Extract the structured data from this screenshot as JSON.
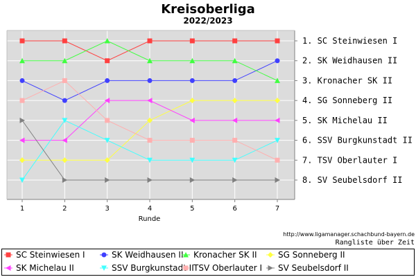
{
  "chart_data": {
    "type": "line",
    "title": "Kreisoberliga",
    "subtitle": "2022/2023",
    "xlabel": "Runde",
    "x": [
      1,
      2,
      3,
      4,
      5,
      6,
      7
    ],
    "ylim": [
      1,
      8
    ],
    "y_reversed": true,
    "grid": true,
    "rank_labels": [
      "1. SC Steinwiesen I",
      "2. SK Weidhausen II",
      "3. Kronacher SK II",
      "4. SG Sonneberg II",
      "5. SK Michelau II",
      "6. SSV Burgkunstadt II",
      "7. TSV Oberlauter I",
      "8. SV Seubelsdorf  II"
    ],
    "series": [
      {
        "name": "SC Steinwiesen I",
        "color": "#ff4040",
        "marker": "square",
        "values": [
          1,
          1,
          2,
          1,
          1,
          1,
          1
        ]
      },
      {
        "name": "SK Weidhausen II",
        "color": "#4040ff",
        "marker": "circle",
        "values": [
          3,
          4,
          3,
          3,
          3,
          3,
          2
        ]
      },
      {
        "name": "Kronacher SK II",
        "color": "#40ff40",
        "marker": "triangle-up",
        "values": [
          2,
          2,
          1,
          2,
          2,
          2,
          3
        ]
      },
      {
        "name": "SG Sonneberg II",
        "color": "#ffff40",
        "marker": "diamond",
        "values": [
          7,
          7,
          7,
          5,
          4,
          4,
          4
        ]
      },
      {
        "name": "SK Michelau II",
        "color": "#ff40ff",
        "marker": "triangle-left",
        "values": [
          6,
          6,
          4,
          4,
          5,
          5,
          5
        ]
      },
      {
        "name": "SSV Burgkunstadt II",
        "color": "#40ffff",
        "marker": "triangle-down",
        "values": [
          8,
          5,
          6,
          7,
          7,
          7,
          6
        ]
      },
      {
        "name": "TSV Oberlauter I",
        "color": "#ffafaf",
        "marker": "square",
        "values": [
          4,
          3,
          5,
          6,
          6,
          6,
          7
        ]
      },
      {
        "name": "SV Seubelsdorf  II",
        "color": "#808080",
        "marker": "triangle-right",
        "values": [
          5,
          8,
          8,
          8,
          8,
          8,
          8
        ]
      }
    ]
  },
  "footer": {
    "url": "http://www.ligamanager.schachbund-bayern.de",
    "caption": "Rangliste über Zeit"
  }
}
